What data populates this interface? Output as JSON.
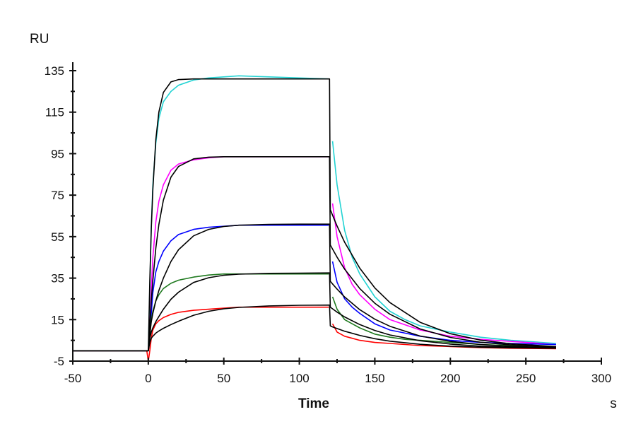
{
  "chart_data": {
    "type": "line",
    "title": "",
    "xlabel": "Time",
    "xunit": "s",
    "ylabel": "RU",
    "xlim": [
      -50,
      300
    ],
    "ylim": [
      -5,
      139
    ],
    "xticks": [
      -50,
      0,
      50,
      100,
      150,
      200,
      250,
      300
    ],
    "yticks": [
      -5,
      15,
      35,
      55,
      75,
      95,
      115,
      135
    ],
    "grid": false,
    "legend": "none",
    "observed_time": {
      "association": [
        -50,
        -1,
        0,
        1,
        2,
        3,
        5,
        7,
        10,
        15,
        20,
        30,
        40,
        50,
        60,
        80,
        100,
        119.5
      ],
      "dissociation": [
        122,
        125,
        130,
        135,
        140,
        150,
        160,
        170,
        180,
        200,
        220,
        240,
        270
      ]
    },
    "fit_time": {
      "association": [
        -50,
        -1,
        0,
        1,
        2,
        3,
        5,
        7,
        10,
        15,
        20,
        30,
        40,
        50,
        60,
        80,
        100,
        120
      ],
      "dissociation": [
        120.5,
        122,
        125,
        130,
        140,
        150,
        160,
        180,
        200,
        220,
        240,
        270
      ]
    },
    "series": [
      {
        "name": "cyan",
        "color": "#22d3d3",
        "kind": "observed",
        "association": [
          0,
          0,
          0,
          30,
          60,
          80,
          100,
          112,
          120,
          125,
          128,
          130.5,
          131.5,
          132,
          132.5,
          132,
          131.5,
          131
        ],
        "dissociation": [
          101,
          80,
          58,
          45,
          37,
          26,
          19,
          15,
          12,
          9,
          6.5,
          5,
          3.5
        ]
      },
      {
        "name": "magenta",
        "color": "#ff00ff",
        "kind": "observed",
        "association": [
          0,
          0,
          0,
          12,
          30,
          45,
          62,
          72,
          80,
          87,
          90,
          92,
          93,
          93.5,
          93.5,
          93.5,
          93.5,
          93.5
        ],
        "dissociation": [
          71,
          55,
          40,
          32,
          27,
          20,
          15,
          12.5,
          10,
          7,
          5.5,
          4.5,
          3
        ]
      },
      {
        "name": "blue",
        "color": "#0000ff",
        "kind": "observed",
        "association": [
          0,
          0,
          0,
          8,
          18,
          28,
          38,
          43,
          48,
          53,
          56,
          58.5,
          59.5,
          60,
          60.5,
          60.5,
          60.5,
          60.5
        ],
        "dissociation": [
          43,
          33,
          25,
          21,
          18,
          13,
          10,
          8.5,
          7,
          5,
          4,
          3.5,
          3
        ]
      },
      {
        "name": "green",
        "color": "#1f7a1f",
        "kind": "observed",
        "association": [
          0,
          0,
          0,
          7,
          15,
          19,
          24,
          27,
          30,
          32.5,
          34,
          35.5,
          36.5,
          37,
          37,
          37,
          37,
          37
        ],
        "dissociation": [
          26,
          20,
          15,
          13,
          11,
          8,
          6.5,
          5.5,
          5,
          4,
          3,
          2.5,
          2
        ]
      },
      {
        "name": "red",
        "color": "#ff0000",
        "kind": "observed",
        "association": [
          0,
          0,
          -5,
          0,
          6,
          10,
          13,
          14.5,
          16,
          17.5,
          18.5,
          19.5,
          20,
          20.5,
          21,
          21,
          21,
          21
        ],
        "dissociation": [
          13,
          9,
          7,
          6,
          5,
          4,
          3.5,
          3,
          2.5,
          2,
          1.5,
          1.2,
          1
        ]
      },
      {
        "name": "fit-1",
        "color": "#000000",
        "kind": "fit",
        "association": [
          0,
          0,
          0,
          34,
          59,
          77.7,
          101.8,
          115,
          124.5,
          129.6,
          130.7,
          131,
          131,
          131,
          131,
          131,
          131,
          131
        ],
        "dissociation": [
          68,
          65.3,
          60.1,
          52.3,
          39.8,
          30.3,
          23.2,
          13.7,
          8.2,
          5.1,
          3.3,
          2
        ]
      },
      {
        "name": "fit-2",
        "color": "#000000",
        "kind": "fit",
        "association": [
          0,
          0,
          0,
          13,
          24.2,
          33.8,
          49.4,
          60.8,
          72.6,
          83.7,
          88.8,
          92.5,
          93.3,
          93.5,
          93.5,
          93.5,
          93.5,
          93.5
        ],
        "dissociation": [
          51,
          49,
          45.1,
          39.3,
          30,
          22.9,
          17.6,
          10.5,
          6.4,
          4.1,
          2.8,
          1.8
        ]
      },
      {
        "name": "fit-3",
        "color": "#000000",
        "kind": "fit",
        "association": [
          0,
          0,
          0,
          8,
          14,
          18,
          24,
          29,
          35,
          43,
          48.7,
          55.4,
          58.5,
          59.9,
          60.5,
          60.9,
          61,
          61
        ],
        "dissociation": [
          33.5,
          32.2,
          29.7,
          25.9,
          19.8,
          15.2,
          11.8,
          7.1,
          4.5,
          3,
          2.1,
          1.5
        ]
      },
      {
        "name": "fit-4",
        "color": "#000000",
        "kind": "fit",
        "association": [
          0,
          0,
          0,
          6,
          9,
          11,
          14,
          16.5,
          20,
          24.8,
          28.2,
          32.9,
          35.2,
          36.4,
          36.9,
          37.3,
          37.4,
          37.5
        ],
        "dissociation": [
          21,
          20.2,
          18.6,
          16.3,
          12.6,
          9.8,
          7.6,
          4.8,
          3.2,
          2.2,
          1.7,
          1.3
        ]
      },
      {
        "name": "fit-5",
        "color": "#000000",
        "kind": "fit",
        "association": [
          0,
          0,
          0,
          4,
          6,
          7,
          8.5,
          9.5,
          10.8,
          12.6,
          14.2,
          17.1,
          19,
          20.2,
          20.9,
          21.6,
          21.9,
          22
        ],
        "dissociation": [
          12,
          11.5,
          10.7,
          9.4,
          7.4,
          5.8,
          4.6,
          3.1,
          2.2,
          1.7,
          1.4,
          1.2
        ]
      }
    ]
  }
}
